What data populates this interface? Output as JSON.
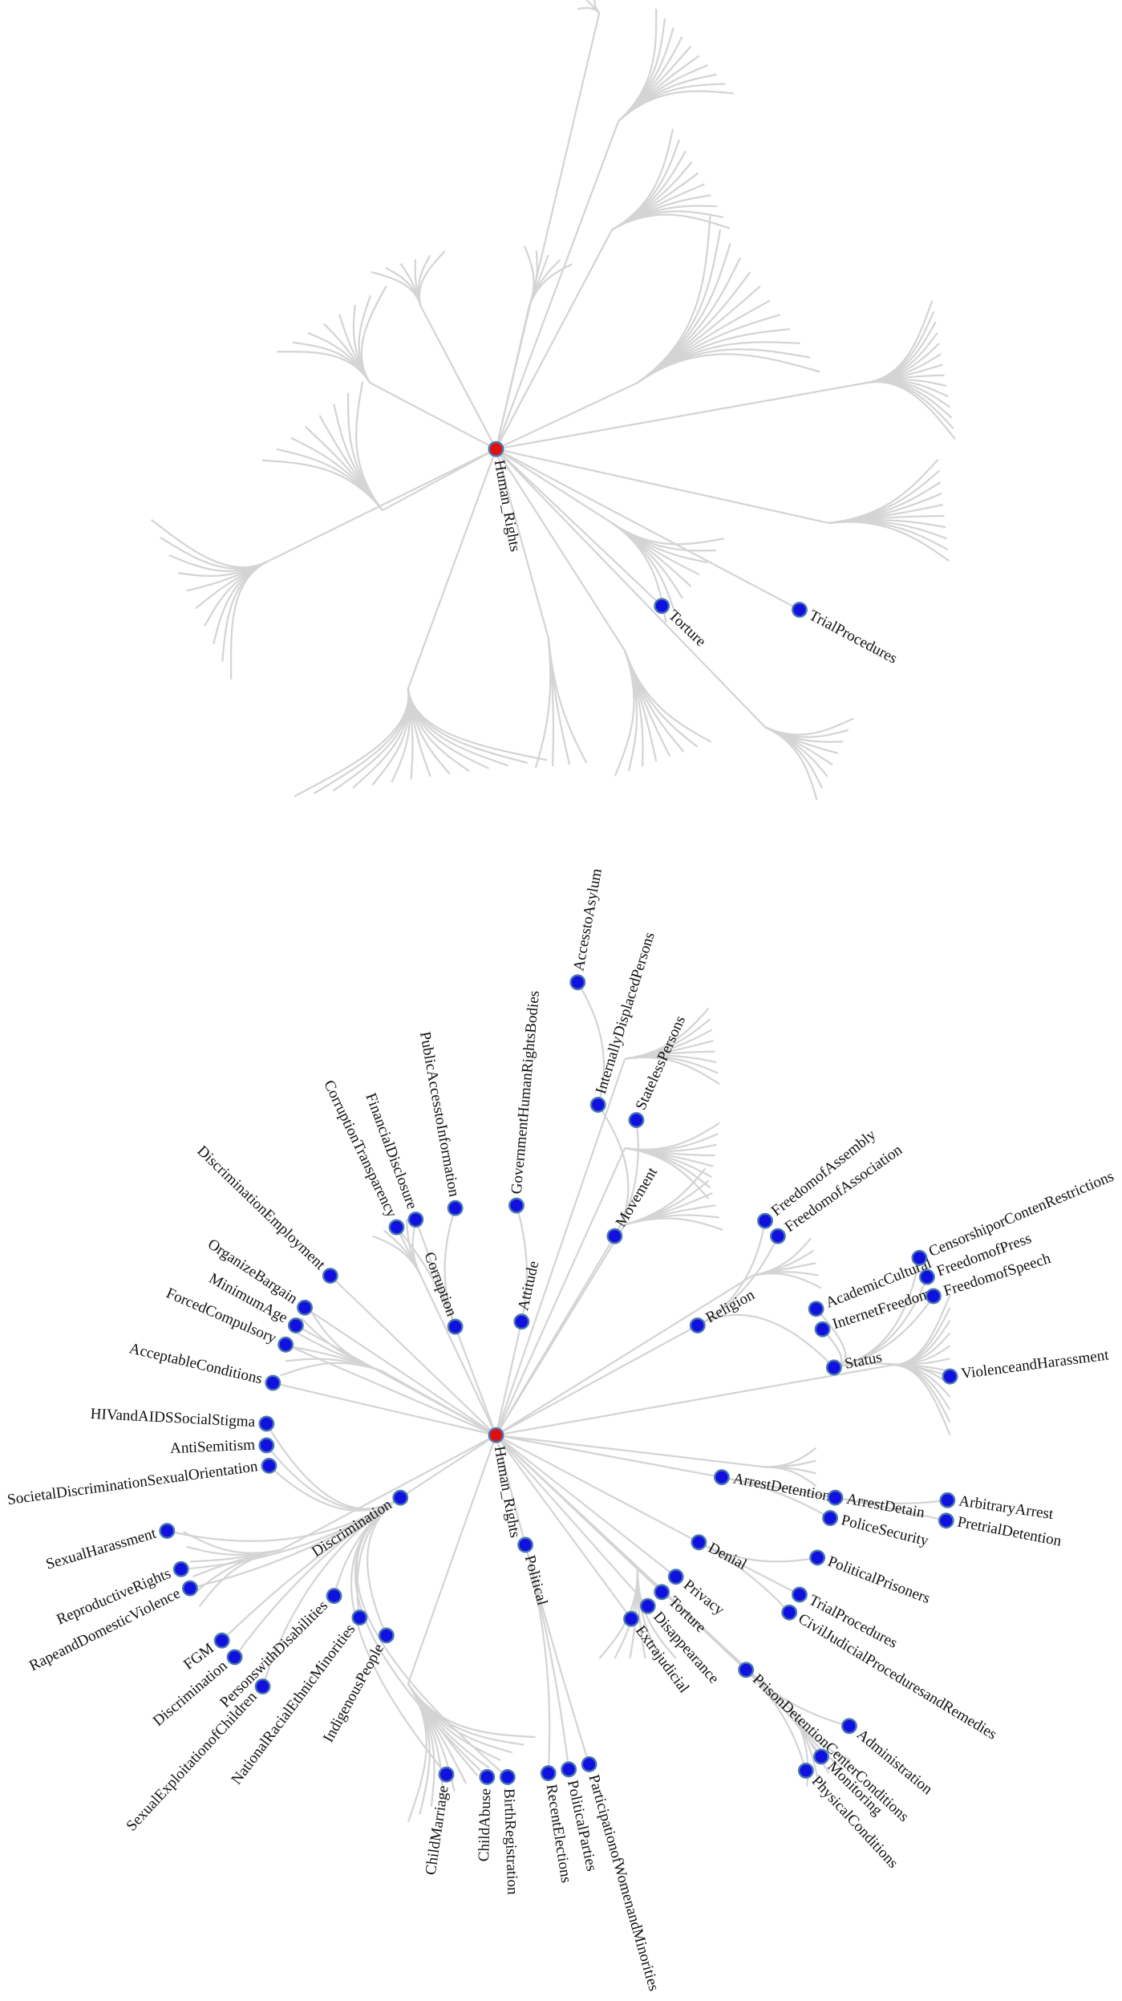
{
  "top_tree": {
    "root": "Human_Rights",
    "nodes": [
      "Torture",
      "TrialProcedures"
    ]
  },
  "bottom_tree": {
    "root": "Human_Rights",
    "nodes": [
      "AccesstoAsylum",
      "InternallyDisplacedPersons",
      "StatelessPersons",
      "Movement",
      "GovernmentHumanRightsBodies",
      "Attitude",
      "PublicAccesstoInformation",
      "FinancialDisclosure",
      "CorruptionTransparency",
      "Corruption",
      "DiscriminationEmployment",
      "OrganizeBargain",
      "MinimumAge",
      "ForcedCompulsory",
      "AcceptableConditions",
      "HIVandAIDSSocialStigma",
      "AntiSemitism",
      "SocietalDiscriminationSexualOrientation",
      "Discrimination",
      "SexualHarassment",
      "ReproductiveRights",
      "RapeandDomesticViolence",
      "FGM",
      "Discrimination",
      "PersonswithDisabilities",
      "SexualExploitationofChildren",
      "NationalRacialEthnicMinorities",
      "IndigenousPeople",
      "ChildMarriage",
      "ChildAbuse",
      "BirthRegistration",
      "Political",
      "RecentElections",
      "PoliticalParties",
      "ParticipationofWomenandMinorities",
      "Religion",
      "FreedomofAssembly",
      "FreedomofAssociation",
      "AcademicCultural",
      "InternetFreedom",
      "CensorshiporContenRestrictions",
      "FreedomofPress",
      "FreedomofSpeech",
      "Status",
      "ViolenceandHarassment",
      "ArrestDetention",
      "ArrestDetain",
      "ArbitraryArrest",
      "PretrialDetention",
      "PoliceSecurity",
      "Denial",
      "PoliticalPrisoners",
      "TrialProcedures",
      "CivilJudicialProceduresandRemedies",
      "Privacy",
      "Torture",
      "Disappearance",
      "Extrajudicial",
      "PrisonDetentionCenterConditions",
      "Administration",
      "Monitoring",
      "PhysicalConditions"
    ]
  }
}
